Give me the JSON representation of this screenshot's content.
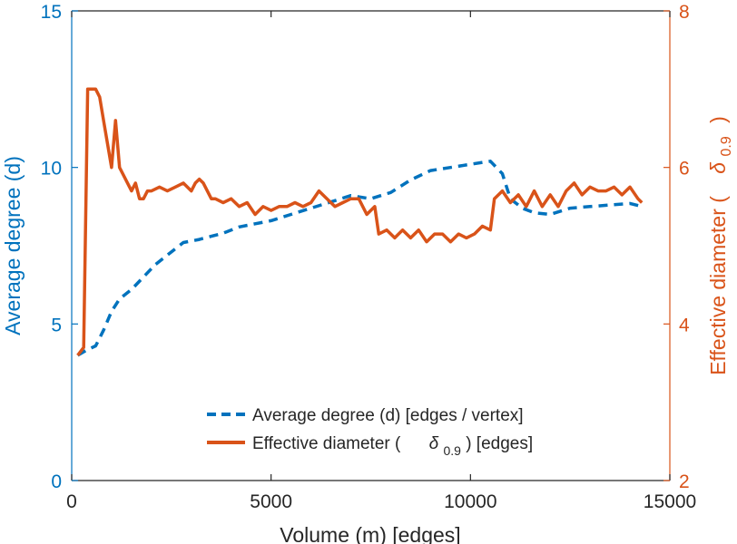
{
  "chart_data": {
    "type": "line",
    "title": "",
    "xlabel": "Volume (m) [edges]",
    "ylabel_left": "Average degree (d)",
    "ylabel_right": {
      "prefix": "Effective diameter (",
      "symbol": "δ",
      "subscript": "0.9",
      "suffix": ")"
    },
    "xlim": [
      0,
      15000
    ],
    "ylim_left": [
      0,
      15
    ],
    "ylim_right": [
      2,
      8
    ],
    "x_ticks": [
      "0",
      "5000",
      "10000",
      "15000"
    ],
    "x_tick_values": [
      0,
      5000,
      10000,
      15000
    ],
    "y_left_ticks": [
      "0",
      "5",
      "10",
      "15"
    ],
    "y_left_tick_values": [
      0,
      5,
      10,
      15
    ],
    "y_right_ticks": [
      "2",
      "4",
      "6",
      "8"
    ],
    "y_right_tick_values": [
      2,
      4,
      6,
      8
    ],
    "grid": false,
    "legend_position": "bottom-center",
    "legend": [
      {
        "label": "Average degree (d) [edges / vertex]",
        "style": "dashed",
        "color": "#0072BD"
      },
      {
        "label_prefix": "Effective diameter (",
        "symbol": "δ",
        "subscript": "0.9",
        "label_suffix": ") [edges]",
        "style": "solid",
        "color": "#D95319"
      }
    ],
    "colors": {
      "left_axis": "#0072BD",
      "right_axis": "#D95319",
      "bottom_axis": "#262626"
    },
    "series": [
      {
        "name": "Average degree (d) [edges / vertex]",
        "axis": "left",
        "style": "dashed",
        "color": "#0072BD",
        "x": [
          150,
          350,
          600,
          800,
          1000,
          1200,
          1500,
          1800,
          2100,
          2500,
          2800,
          3200,
          3500,
          3800,
          4200,
          4600,
          5000,
          5500,
          6000,
          6500,
          7000,
          7500,
          8000,
          8500,
          9000,
          9500,
          10000,
          10500,
          10800,
          11000,
          11300,
          11600,
          12000,
          12500,
          13000,
          13500,
          14000,
          14300
        ],
        "values": [
          4.0,
          4.15,
          4.3,
          4.8,
          5.4,
          5.8,
          6.1,
          6.5,
          6.9,
          7.3,
          7.6,
          7.7,
          7.8,
          7.9,
          8.1,
          8.2,
          8.3,
          8.5,
          8.7,
          8.9,
          9.1,
          9.0,
          9.2,
          9.6,
          9.9,
          10.0,
          10.1,
          10.2,
          9.8,
          9.0,
          8.7,
          8.55,
          8.5,
          8.7,
          8.75,
          8.8,
          8.85,
          8.75
        ]
      },
      {
        "name": "Effective diameter (δ0.9) [edges]",
        "axis": "right",
        "style": "solid",
        "color": "#D95319",
        "x": [
          150,
          300,
          400,
          500,
          600,
          700,
          800,
          900,
          1000,
          1100,
          1200,
          1300,
          1400,
          1500,
          1600,
          1700,
          1800,
          1900,
          2000,
          2200,
          2400,
          2600,
          2800,
          3000,
          3100,
          3200,
          3300,
          3400,
          3500,
          3600,
          3800,
          4000,
          4200,
          4400,
          4600,
          4800,
          5000,
          5200,
          5400,
          5600,
          5800,
          6000,
          6200,
          6400,
          6600,
          6800,
          7000,
          7200,
          7400,
          7600,
          7700,
          7900,
          8100,
          8300,
          8500,
          8700,
          8900,
          9100,
          9300,
          9500,
          9700,
          9900,
          10100,
          10300,
          10500,
          10600,
          10800,
          11000,
          11200,
          11400,
          11600,
          11800,
          12000,
          12200,
          12400,
          12600,
          12800,
          13000,
          13200,
          13400,
          13600,
          13800,
          14000,
          14200,
          14300
        ],
        "values": [
          3.6,
          3.7,
          7.0,
          7.0,
          7.0,
          6.9,
          6.6,
          6.3,
          6.0,
          6.6,
          6.0,
          5.9,
          5.8,
          5.7,
          5.8,
          5.6,
          5.6,
          5.7,
          5.7,
          5.75,
          5.7,
          5.75,
          5.8,
          5.7,
          5.8,
          5.85,
          5.8,
          5.7,
          5.6,
          5.6,
          5.55,
          5.6,
          5.5,
          5.55,
          5.4,
          5.5,
          5.45,
          5.5,
          5.5,
          5.55,
          5.5,
          5.55,
          5.7,
          5.6,
          5.5,
          5.55,
          5.6,
          5.6,
          5.4,
          5.5,
          5.15,
          5.2,
          5.1,
          5.2,
          5.1,
          5.2,
          5.05,
          5.15,
          5.15,
          5.05,
          5.15,
          5.1,
          5.15,
          5.25,
          5.2,
          5.6,
          5.7,
          5.55,
          5.65,
          5.5,
          5.7,
          5.5,
          5.65,
          5.5,
          5.7,
          5.8,
          5.65,
          5.75,
          5.7,
          5.7,
          5.75,
          5.65,
          5.75,
          5.6,
          5.55
        ]
      }
    ]
  }
}
